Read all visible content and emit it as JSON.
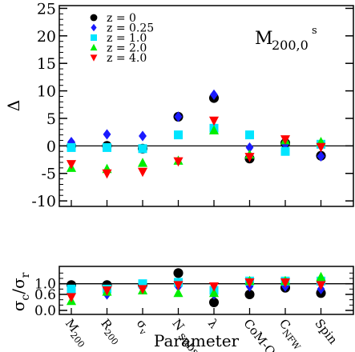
{
  "chart_data": [
    {
      "panel": "top",
      "type": "scatter",
      "ylabel": "Δ",
      "ylim": [
        -11,
        25.5
      ],
      "y_ticks": [
        -10,
        -5,
        0,
        5,
        10,
        15,
        20,
        25
      ],
      "zero_line": 0,
      "annotation": {
        "main": "M",
        "sub": "200,0",
        "sup": "s"
      },
      "categories": [
        "M200",
        "R200",
        "σ_v",
        "N_substr",
        "λ",
        "CoM-Off",
        "C_NFW",
        "Spin"
      ],
      "legend": [
        {
          "label": "z = 0",
          "color": "#000000",
          "marker": "circle"
        },
        {
          "label": "z = 0.25",
          "color": "#1a1aff",
          "marker": "diamond"
        },
        {
          "label": "z = 1.0",
          "color": "#00e5ff",
          "marker": "square"
        },
        {
          "label": "z = 2.0",
          "color": "#00ee00",
          "marker": "triangle-up"
        },
        {
          "label": "z = 4.0",
          "color": "#ff0000",
          "marker": "triangle-down"
        }
      ],
      "series": [
        {
          "name": "z = 0",
          "values": [
            0.0,
            0.0,
            -0.5,
            5.3,
            8.7,
            -2.3,
            0.5,
            -1.8
          ]
        },
        {
          "name": "z = 0.25",
          "values": [
            0.7,
            2.1,
            1.8,
            5.3,
            9.3,
            -0.3,
            0.3,
            -1.9
          ]
        },
        {
          "name": "z = 1.0",
          "values": [
            -0.3,
            -0.3,
            -0.5,
            2.0,
            3.2,
            2.0,
            -1.0,
            0.3
          ]
        },
        {
          "name": "z = 2.0",
          "values": [
            -4.0,
            -4.2,
            -3.1,
            -2.7,
            2.8,
            -1.6,
            1.0,
            0.7
          ]
        },
        {
          "name": "z = 4.0",
          "values": [
            -3.3,
            -5.0,
            -4.7,
            -2.8,
            4.6,
            -2.0,
            1.2,
            -0.2
          ]
        }
      ]
    },
    {
      "panel": "bottom",
      "type": "scatter",
      "ylabel": "σc / σr",
      "ylim": [
        -0.15,
        1.65
      ],
      "y_ticks": [
        0.0,
        0.6,
        1.0
      ],
      "y_tick_labels": [
        "0.0",
        "0.6",
        "1.0"
      ],
      "ref_line": 1.0,
      "xlabel": "Parameter",
      "categories": [
        "M200",
        "R200",
        "σ_v",
        "N_substr",
        "λ",
        "CoM-Off",
        "C_NFW",
        "Spin"
      ],
      "series": [
        {
          "name": "z = 0",
          "values": [
            0.95,
            0.95,
            0.95,
            1.4,
            0.3,
            0.6,
            0.85,
            0.65
          ]
        },
        {
          "name": "z = 0.25",
          "values": [
            0.6,
            0.6,
            0.85,
            0.9,
            0.6,
            0.9,
            0.9,
            0.8
          ]
        },
        {
          "name": "z = 1.0",
          "values": [
            0.8,
            0.8,
            1.0,
            1.05,
            0.75,
            1.1,
            1.1,
            1.1
          ]
        },
        {
          "name": "z = 2.0",
          "values": [
            0.35,
            0.7,
            0.75,
            0.65,
            0.65,
            1.1,
            1.1,
            1.25
          ]
        },
        {
          "name": "z = 4.0",
          "values": [
            0.5,
            0.75,
            0.8,
            0.95,
            0.9,
            1.05,
            1.05,
            0.95
          ]
        }
      ]
    }
  ]
}
